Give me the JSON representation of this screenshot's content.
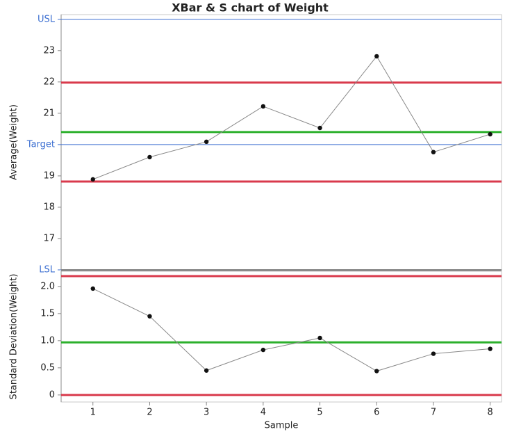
{
  "chart_data": [
    {
      "type": "line",
      "title": "XBar & S chart of Weight",
      "ylabel": "Average(Weight)",
      "x": [
        1,
        2,
        3,
        4,
        5,
        6,
        7,
        8
      ],
      "values": [
        18.89,
        19.6,
        20.09,
        21.22,
        20.53,
        22.82,
        19.76,
        20.33
      ],
      "color": "#888888",
      "marker_color": "#111111",
      "xlim": [
        0.44,
        8.2
      ],
      "ylim": [
        16,
        24.15
      ],
      "yticks": [
        {
          "value": 16,
          "label": "LSL"
        },
        17,
        18,
        19,
        {
          "value": 20,
          "label": "Target"
        },
        21,
        22,
        23,
        {
          "value": 24,
          "label": "USL"
        }
      ],
      "spec_color": "#3c6fd1",
      "spec_lines": true,
      "control_limits": {
        "ucl": 21.98,
        "center": 20.4,
        "lcl": 18.82
      },
      "limit_color": "#d93a4c",
      "center_color": "#2cb02c"
    },
    {
      "type": "line",
      "ylabel": "Standard Deviation(Weight)",
      "xlabel": "Sample",
      "x": [
        1,
        2,
        3,
        4,
        5,
        6,
        7,
        8
      ],
      "values": [
        1.96,
        1.45,
        0.45,
        0.83,
        1.05,
        0.44,
        0.76,
        0.85
      ],
      "color": "#888888",
      "marker_color": "#111111",
      "xlim": [
        0.44,
        8.2
      ],
      "ylim": [
        -0.13,
        2.28
      ],
      "xticks": [
        1,
        2,
        3,
        4,
        5,
        6,
        7,
        8
      ],
      "yticks": [
        0,
        0.5,
        {
          "value": 1,
          "label": "1.0"
        },
        1.5,
        {
          "value": 2,
          "label": "2.0"
        }
      ],
      "control_limits": {
        "ucl": 2.19,
        "center": 0.97,
        "lcl": 0
      },
      "limit_color": "#d93a4c",
      "center_color": "#2cb02c"
    }
  ]
}
